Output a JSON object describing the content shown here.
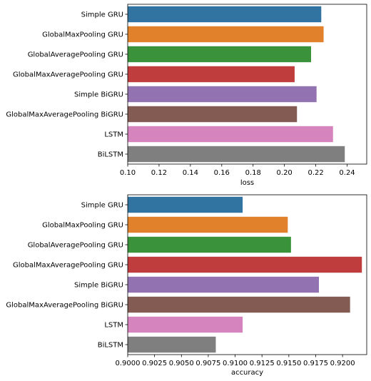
{
  "chart_data": [
    {
      "type": "bar",
      "orientation": "horizontal",
      "categories": [
        "Simple GRU",
        "GlobalMaxPooling GRU",
        "GlobalAveragePooling GRU",
        "GlobalMaxAveragePooling GRU",
        "Simple BiGRU",
        "GlobalMaxAveragePooling BiGRU",
        "LSTM",
        "BiLSTM"
      ],
      "values": [
        0.2235,
        0.225,
        0.217,
        0.2065,
        0.2205,
        0.208,
        0.231,
        0.2385
      ],
      "xlabel": "loss",
      "xlim": [
        0.1,
        0.2525
      ],
      "xticks": [
        0.1,
        0.12,
        0.14,
        0.16,
        0.18,
        0.2,
        0.22,
        0.24
      ],
      "xtick_labels": [
        "0.10",
        "0.12",
        "0.14",
        "0.16",
        "0.18",
        "0.20",
        "0.22",
        "0.24"
      ],
      "grid": false
    },
    {
      "type": "bar",
      "orientation": "horizontal",
      "categories": [
        "Simple GRU",
        "GlobalMaxPooling GRU",
        "GlobalAveragePooling GRU",
        "GlobalMaxAveragePooling GRU",
        "Simple BiGRU",
        "GlobalMaxAveragePooling BiGRU",
        "LSTM",
        "BiLSTM"
      ],
      "values": [
        0.9107,
        0.9149,
        0.9152,
        0.9218,
        0.9178,
        0.9207,
        0.9107,
        0.9082
      ],
      "xlabel": "accuracy",
      "xlim": [
        0.9,
        0.92225
      ],
      "xticks": [
        0.9,
        0.9025,
        0.905,
        0.9075,
        0.91,
        0.9125,
        0.915,
        0.9175,
        0.92
      ],
      "xtick_labels": [
        "0.9000",
        "0.9025",
        "0.9050",
        "0.9075",
        "0.9100",
        "0.9125",
        "0.9150",
        "0.9175",
        "0.9200"
      ],
      "grid": false
    }
  ],
  "colors": [
    "#3274a1",
    "#e1812c",
    "#3a923a",
    "#c03d3e",
    "#9372b2",
    "#845b53",
    "#d684bd",
    "#7f7f7f"
  ]
}
